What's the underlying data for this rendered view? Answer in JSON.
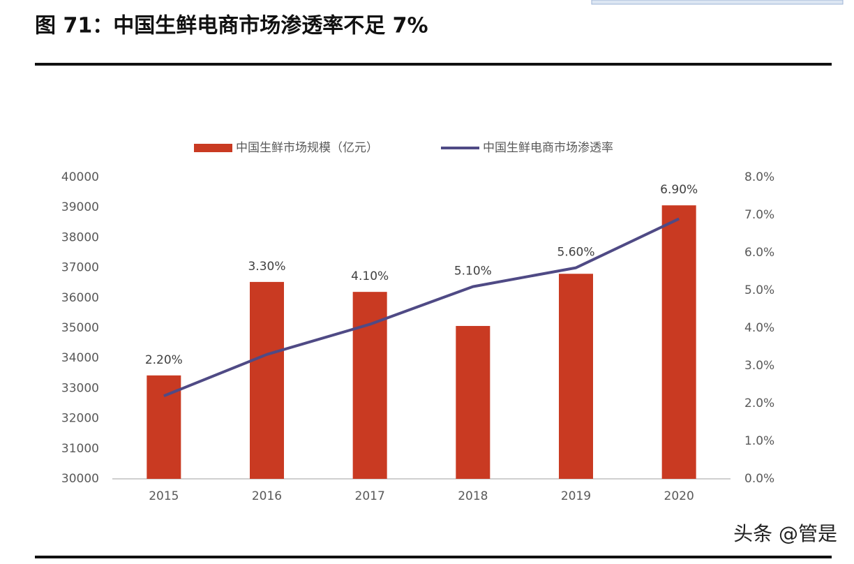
{
  "chart_data": {
    "type": "bar-line",
    "title": "图 71：中国生鲜电商市场渗透率不足 7%",
    "watermark": "头条 @管是",
    "categories": [
      "2015",
      "2016",
      "2017",
      "2018",
      "2019",
      "2020"
    ],
    "series": [
      {
        "name": "中国生鲜市场规模（亿元）",
        "type": "bar",
        "color": "#c93a22",
        "values": [
          33430,
          36530,
          36200,
          35070,
          36800,
          39070
        ]
      },
      {
        "name": "中国生鲜电商市场渗透率",
        "type": "line",
        "axis": "y2",
        "color": "#4f4a85",
        "values": [
          2.2,
          3.3,
          4.1,
          5.1,
          5.6,
          6.9
        ],
        "value_labels": [
          "2.20%",
          "3.30%",
          "4.10%",
          "5.10%",
          "5.60%",
          "6.90%"
        ]
      }
    ],
    "ylim": [
      30000,
      40000
    ],
    "yticks": [
      30000,
      31000,
      32000,
      33000,
      34000,
      35000,
      36000,
      37000,
      38000,
      39000,
      40000
    ],
    "y2lim": [
      0,
      8
    ],
    "y2ticks": [
      {
        "value": 0,
        "label": "0.0%"
      },
      {
        "value": 1,
        "label": "1.0%"
      },
      {
        "value": 2,
        "label": "2.0%"
      },
      {
        "value": 3,
        "label": "3.0%"
      },
      {
        "value": 4,
        "label": "4.0%"
      },
      {
        "value": 5,
        "label": "5.0%"
      },
      {
        "value": 6,
        "label": "6.0%"
      },
      {
        "value": 7,
        "label": "7.0%"
      },
      {
        "value": 8,
        "label": "8.0%"
      }
    ],
    "grid": false
  }
}
